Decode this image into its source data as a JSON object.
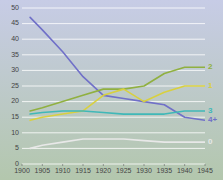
{
  "chart_data": {
    "type": "line",
    "x": [
      1902,
      1905,
      1910,
      1915,
      1920,
      1925,
      1930,
      1935,
      1940,
      1945
    ],
    "series": [
      {
        "name": "4+",
        "color": "#7070c8",
        "values": [
          47,
          43,
          36,
          28,
          22,
          21,
          20,
          19,
          15,
          14
        ]
      },
      {
        "name": "2",
        "color": "#90b040",
        "values": [
          17,
          18,
          20,
          22,
          24,
          24,
          25,
          29,
          31,
          31
        ]
      },
      {
        "name": "1",
        "color": "#d8d040",
        "values": [
          14,
          15,
          16,
          17,
          22,
          24,
          20,
          23,
          25,
          25
        ]
      },
      {
        "name": "3",
        "color": "#40b8b8",
        "values": [
          16,
          16.5,
          17,
          17,
          16.5,
          16,
          16,
          16,
          17,
          17
        ]
      },
      {
        "name": "0",
        "color": "#e8e8e8",
        "values": [
          5,
          6,
          7,
          8,
          8,
          8,
          7.5,
          7,
          7,
          7
        ]
      }
    ],
    "xlim": [
      1900,
      1945
    ],
    "xticks": [
      1900,
      1905,
      1910,
      1915,
      1920,
      1925,
      1930,
      1935,
      1940,
      1945
    ],
    "ylim": [
      0,
      50
    ],
    "yticks": [
      0,
      5,
      10,
      15,
      20,
      25,
      30,
      35,
      40,
      45,
      50
    ],
    "grid": true
  }
}
